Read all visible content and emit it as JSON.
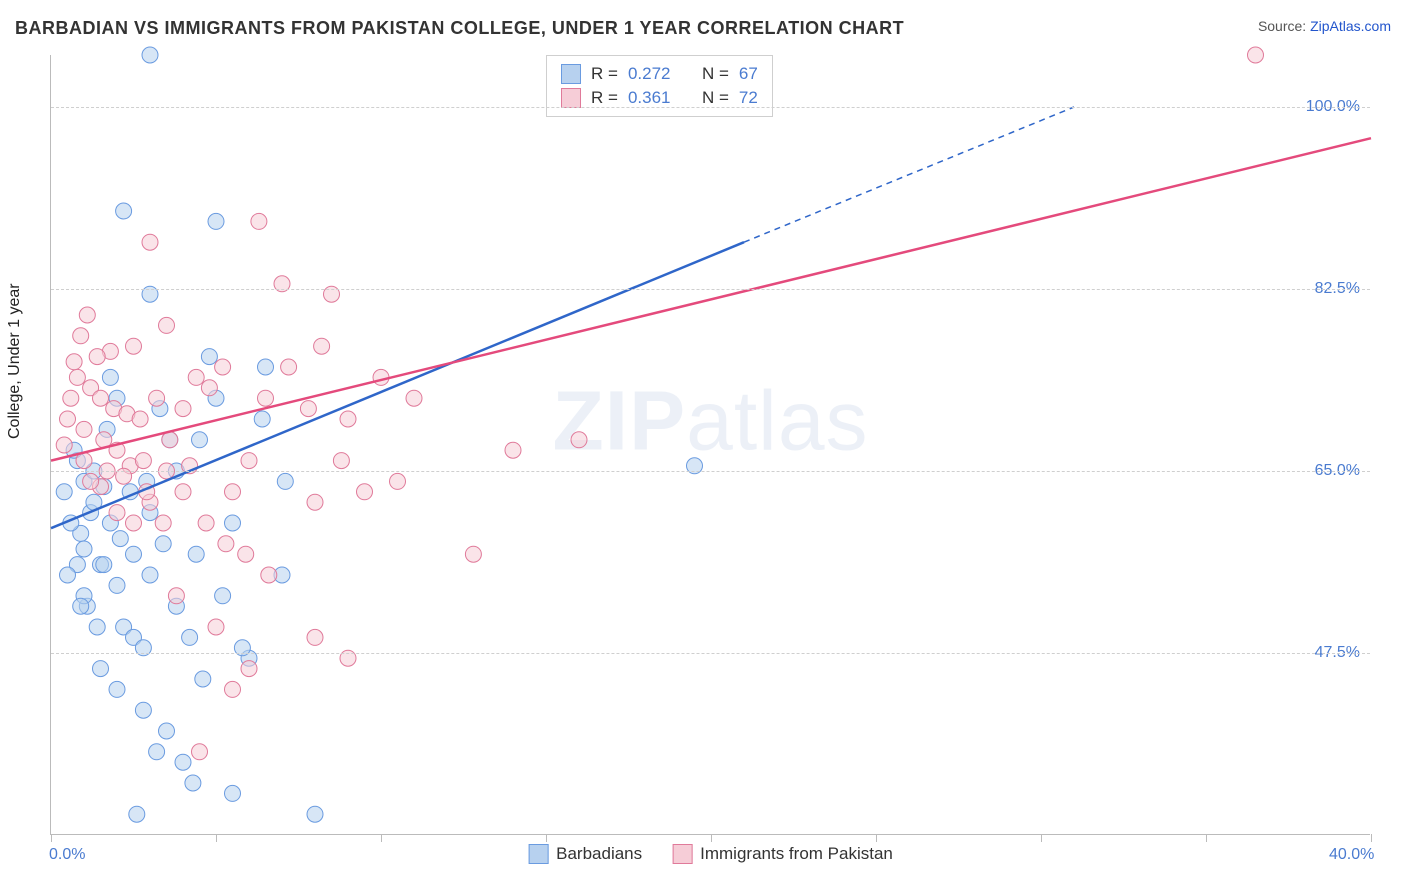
{
  "header": {
    "title": "BARBADIAN VS IMMIGRANTS FROM PAKISTAN COLLEGE, UNDER 1 YEAR CORRELATION CHART",
    "source_prefix": "Source: ",
    "source_link": "ZipAtlas.com"
  },
  "chart": {
    "type": "scatter",
    "ylabel": "College, Under 1 year",
    "xlim": [
      0,
      40
    ],
    "ylim": [
      30,
      105
    ],
    "xtick_positions": [
      0,
      5,
      10,
      15,
      20,
      25,
      30,
      35,
      40
    ],
    "xtick_labels": {
      "0": "0.0%",
      "40": "40.0%"
    },
    "ytick_positions": [
      47.5,
      65.0,
      82.5,
      100.0
    ],
    "ytick_labels": [
      "47.5%",
      "65.0%",
      "82.5%",
      "100.0%"
    ],
    "grid_color": "#cfcfcf",
    "axis_color": "#bbbbbb",
    "background": "#ffffff",
    "watermark": "ZIPatlas",
    "series": [
      {
        "name": "Barbadians",
        "fill": "#b7d1ef",
        "stroke": "#6a9be0",
        "line_color": "#2f66c9",
        "r_label": "R =",
        "r_value": "0.272",
        "n_label": "N =",
        "n_value": "67",
        "trend": {
          "x1": 0,
          "y1": 59.5,
          "x2_solid": 21,
          "y2_solid": 87,
          "x2_dash": 31,
          "y2_dash": 100
        },
        "points": [
          [
            1.0,
            64
          ],
          [
            1.2,
            61
          ],
          [
            0.9,
            59
          ],
          [
            1.5,
            56
          ],
          [
            2.0,
            54
          ],
          [
            1.1,
            52
          ],
          [
            2.2,
            50
          ],
          [
            2.5,
            49
          ],
          [
            2.8,
            48
          ],
          [
            1.3,
            62
          ],
          [
            0.8,
            66
          ],
          [
            2.4,
            63
          ],
          [
            2.0,
            72
          ],
          [
            1.7,
            69
          ],
          [
            3.3,
            71
          ],
          [
            3.8,
            65
          ],
          [
            4.5,
            68
          ],
          [
            5.0,
            72
          ],
          [
            1.8,
            74
          ],
          [
            3.0,
            82
          ],
          [
            4.8,
            76
          ],
          [
            3.0,
            105
          ],
          [
            2.2,
            90
          ],
          [
            5.0,
            89
          ],
          [
            6.5,
            75
          ],
          [
            2.0,
            44
          ],
          [
            1.5,
            46
          ],
          [
            2.8,
            42
          ],
          [
            3.5,
            40
          ],
          [
            4.0,
            37
          ],
          [
            4.3,
            35
          ],
          [
            5.5,
            34
          ],
          [
            3.2,
            38
          ],
          [
            2.6,
            32
          ],
          [
            8.0,
            32
          ],
          [
            6.0,
            47
          ],
          [
            7.0,
            55
          ],
          [
            5.5,
            60
          ],
          [
            4.4,
            57
          ],
          [
            3.0,
            55
          ],
          [
            1.6,
            56
          ],
          [
            1.0,
            57.5
          ],
          [
            0.6,
            60
          ],
          [
            0.4,
            63
          ],
          [
            0.7,
            67
          ],
          [
            1.3,
            65
          ],
          [
            1.8,
            60
          ],
          [
            2.1,
            58.5
          ],
          [
            2.5,
            57
          ],
          [
            3.0,
            61
          ],
          [
            3.4,
            58
          ],
          [
            3.8,
            52
          ],
          [
            4.2,
            49
          ],
          [
            4.6,
            45
          ],
          [
            5.2,
            53
          ],
          [
            5.8,
            48
          ],
          [
            6.4,
            70
          ],
          [
            7.1,
            64
          ],
          [
            1.0,
            53
          ],
          [
            1.4,
            50
          ],
          [
            0.8,
            56
          ],
          [
            0.5,
            55
          ],
          [
            0.9,
            52
          ],
          [
            1.6,
            63.5
          ],
          [
            2.9,
            64
          ],
          [
            3.6,
            68
          ],
          [
            19.5,
            65.5
          ]
        ]
      },
      {
        "name": "Immigrants from Pakistan",
        "fill": "#f6cdd7",
        "stroke": "#e07a9a",
        "line_color": "#e44a7c",
        "r_label": "R =",
        "r_value": "0.361",
        "n_label": "N =",
        "n_value": "72",
        "trend": {
          "x1": 0,
          "y1": 66,
          "x2_solid": 40,
          "y2_solid": 97,
          "x2_dash": 40,
          "y2_dash": 97
        },
        "points": [
          [
            0.8,
            74
          ],
          [
            1.2,
            73
          ],
          [
            1.5,
            72
          ],
          [
            1.9,
            71
          ],
          [
            2.3,
            70.5
          ],
          [
            2.7,
            70
          ],
          [
            0.6,
            72
          ],
          [
            1.0,
            69
          ],
          [
            1.6,
            68
          ],
          [
            2.0,
            67
          ],
          [
            2.4,
            65.5
          ],
          [
            2.8,
            66
          ],
          [
            3.2,
            72
          ],
          [
            3.6,
            68
          ],
          [
            4.0,
            71
          ],
          [
            4.4,
            74
          ],
          [
            4.8,
            73
          ],
          [
            5.2,
            75
          ],
          [
            6.0,
            66
          ],
          [
            6.5,
            72
          ],
          [
            7.0,
            83
          ],
          [
            7.8,
            71
          ],
          [
            8.5,
            82
          ],
          [
            8.2,
            77
          ],
          [
            9.0,
            70
          ],
          [
            10.0,
            74
          ],
          [
            11.0,
            72
          ],
          [
            14.0,
            67
          ],
          [
            16.0,
            68
          ],
          [
            3.5,
            79
          ],
          [
            2.5,
            77
          ],
          [
            1.8,
            76.5
          ],
          [
            0.9,
            78
          ],
          [
            1.4,
            76
          ],
          [
            1.0,
            66
          ],
          [
            1.5,
            63.5
          ],
          [
            2.0,
            61
          ],
          [
            2.5,
            60
          ],
          [
            3.0,
            62
          ],
          [
            3.4,
            60
          ],
          [
            4.0,
            63
          ],
          [
            5.5,
            63
          ],
          [
            9.5,
            63
          ],
          [
            3.8,
            53
          ],
          [
            5.0,
            50
          ],
          [
            5.5,
            44
          ],
          [
            8.0,
            49
          ],
          [
            9.0,
            47
          ],
          [
            12.8,
            57
          ],
          [
            4.5,
            38
          ],
          [
            6.0,
            46
          ],
          [
            36.5,
            105
          ],
          [
            6.3,
            89
          ],
          [
            3.0,
            87
          ],
          [
            1.1,
            80
          ],
          [
            0.7,
            75.5
          ],
          [
            0.5,
            70
          ],
          [
            0.4,
            67.5
          ],
          [
            1.2,
            64
          ],
          [
            1.7,
            65
          ],
          [
            2.2,
            64.5
          ],
          [
            2.9,
            63
          ],
          [
            3.5,
            65
          ],
          [
            4.2,
            65.5
          ],
          [
            4.7,
            60
          ],
          [
            5.3,
            58
          ],
          [
            5.9,
            57
          ],
          [
            6.6,
            55
          ],
          [
            7.2,
            75
          ],
          [
            8.0,
            62
          ],
          [
            8.8,
            66
          ],
          [
            10.5,
            64
          ]
        ]
      }
    ],
    "marker_radius": 8,
    "marker_opacity": 0.55
  },
  "bottom_legend": {
    "items": [
      "Barbadians",
      "Immigrants from Pakistan"
    ]
  },
  "colors": {
    "tick_label": "#4a7bd0",
    "title": "#333333",
    "source": "#555555"
  }
}
